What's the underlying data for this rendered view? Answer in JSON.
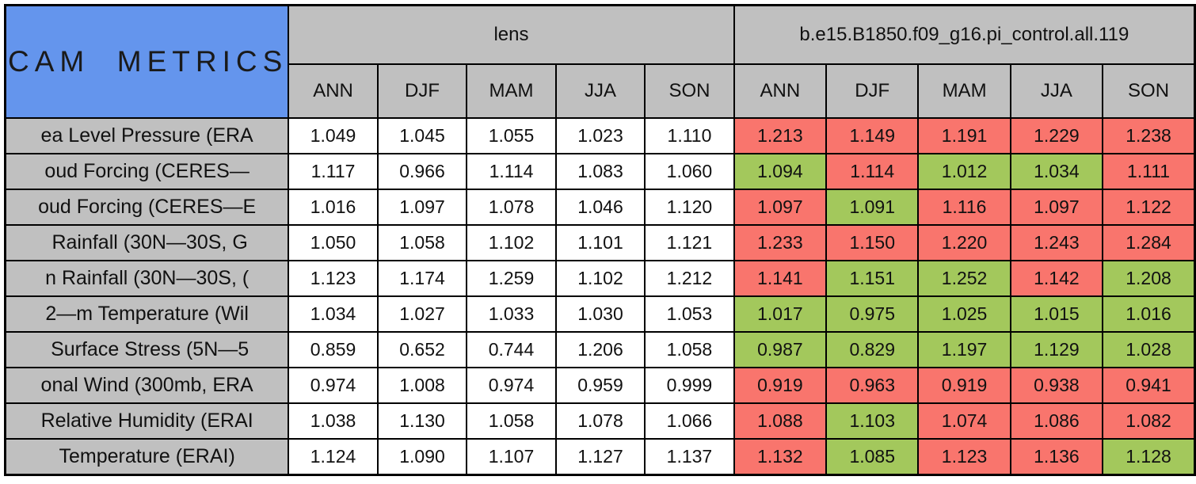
{
  "title": "CAM  METRICS",
  "colors": {
    "blue": "#6495ED",
    "gray": "#C0C0C0",
    "red": "#F9756D",
    "green": "#A3C85C",
    "white": "#FFFFFF"
  },
  "table": {
    "groups": [
      {
        "label": "lens"
      },
      {
        "label": "b.e15.B1850.f09_g16.pi_control.all.119"
      }
    ],
    "seasons": [
      "ANN",
      "DJF",
      "MAM",
      "JJA",
      "SON"
    ],
    "rows": [
      {
        "label": "ea Level Pressure (ERA",
        "lens": [
          "1.049",
          "1.045",
          "1.055",
          "1.023",
          "1.110"
        ],
        "model": [
          {
            "v": "1.213",
            "c": "red"
          },
          {
            "v": "1.149",
            "c": "red"
          },
          {
            "v": "1.191",
            "c": "red"
          },
          {
            "v": "1.229",
            "c": "red"
          },
          {
            "v": "1.238",
            "c": "red"
          }
        ]
      },
      {
        "label": "oud Forcing (CERES—",
        "lens": [
          "1.117",
          "0.966",
          "1.114",
          "1.083",
          "1.060"
        ],
        "model": [
          {
            "v": "1.094",
            "c": "green"
          },
          {
            "v": "1.114",
            "c": "red"
          },
          {
            "v": "1.012",
            "c": "green"
          },
          {
            "v": "1.034",
            "c": "green"
          },
          {
            "v": "1.111",
            "c": "red"
          }
        ]
      },
      {
        "label": "oud Forcing (CERES—E",
        "lens": [
          "1.016",
          "1.097",
          "1.078",
          "1.046",
          "1.120"
        ],
        "model": [
          {
            "v": "1.097",
            "c": "red"
          },
          {
            "v": "1.091",
            "c": "green"
          },
          {
            "v": "1.116",
            "c": "red"
          },
          {
            "v": "1.097",
            "c": "red"
          },
          {
            "v": "1.122",
            "c": "red"
          }
        ]
      },
      {
        "label": " Rainfall (30N—30S, G",
        "lens": [
          "1.050",
          "1.058",
          "1.102",
          "1.101",
          "1.121"
        ],
        "model": [
          {
            "v": "1.233",
            "c": "red"
          },
          {
            "v": "1.150",
            "c": "red"
          },
          {
            "v": "1.220",
            "c": "red"
          },
          {
            "v": "1.243",
            "c": "red"
          },
          {
            "v": "1.284",
            "c": "red"
          }
        ]
      },
      {
        "label": "n Rainfall (30N—30S, (",
        "lens": [
          "1.123",
          "1.174",
          "1.259",
          "1.102",
          "1.212"
        ],
        "model": [
          {
            "v": "1.141",
            "c": "red"
          },
          {
            "v": "1.151",
            "c": "green"
          },
          {
            "v": "1.252",
            "c": "green"
          },
          {
            "v": "1.142",
            "c": "red"
          },
          {
            "v": "1.208",
            "c": "green"
          }
        ]
      },
      {
        "label": "2—m Temperature (Wil",
        "lens": [
          "1.034",
          "1.027",
          "1.033",
          "1.030",
          "1.053"
        ],
        "model": [
          {
            "v": "1.017",
            "c": "green"
          },
          {
            "v": "0.975",
            "c": "green"
          },
          {
            "v": "1.025",
            "c": "green"
          },
          {
            "v": "1.015",
            "c": "green"
          },
          {
            "v": "1.016",
            "c": "green"
          }
        ]
      },
      {
        "label": " Surface Stress (5N—5",
        "lens": [
          "0.859",
          "0.652",
          "0.744",
          "1.206",
          "1.058"
        ],
        "model": [
          {
            "v": "0.987",
            "c": "green"
          },
          {
            "v": "0.829",
            "c": "green"
          },
          {
            "v": "1.197",
            "c": "green"
          },
          {
            "v": "1.129",
            "c": "green"
          },
          {
            "v": "1.028",
            "c": "green"
          }
        ]
      },
      {
        "label": "onal Wind (300mb, ERA",
        "lens": [
          "0.974",
          "1.008",
          "0.974",
          "0.959",
          "0.999"
        ],
        "model": [
          {
            "v": "0.919",
            "c": "red"
          },
          {
            "v": "0.963",
            "c": "red"
          },
          {
            "v": "0.919",
            "c": "red"
          },
          {
            "v": "0.938",
            "c": "red"
          },
          {
            "v": "0.941",
            "c": "red"
          }
        ]
      },
      {
        "label": "Relative Humidity (ERAI",
        "lens": [
          "1.038",
          "1.130",
          "1.058",
          "1.078",
          "1.066"
        ],
        "model": [
          {
            "v": "1.088",
            "c": "red"
          },
          {
            "v": "1.103",
            "c": "green"
          },
          {
            "v": "1.074",
            "c": "red"
          },
          {
            "v": "1.086",
            "c": "red"
          },
          {
            "v": "1.082",
            "c": "red"
          }
        ]
      },
      {
        "label": "Temperature (ERAI)",
        "lens": [
          "1.124",
          "1.090",
          "1.107",
          "1.127",
          "1.137"
        ],
        "model": [
          {
            "v": "1.132",
            "c": "red"
          },
          {
            "v": "1.085",
            "c": "green"
          },
          {
            "v": "1.123",
            "c": "red"
          },
          {
            "v": "1.136",
            "c": "red"
          },
          {
            "v": "1.128",
            "c": "green"
          }
        ]
      }
    ]
  }
}
